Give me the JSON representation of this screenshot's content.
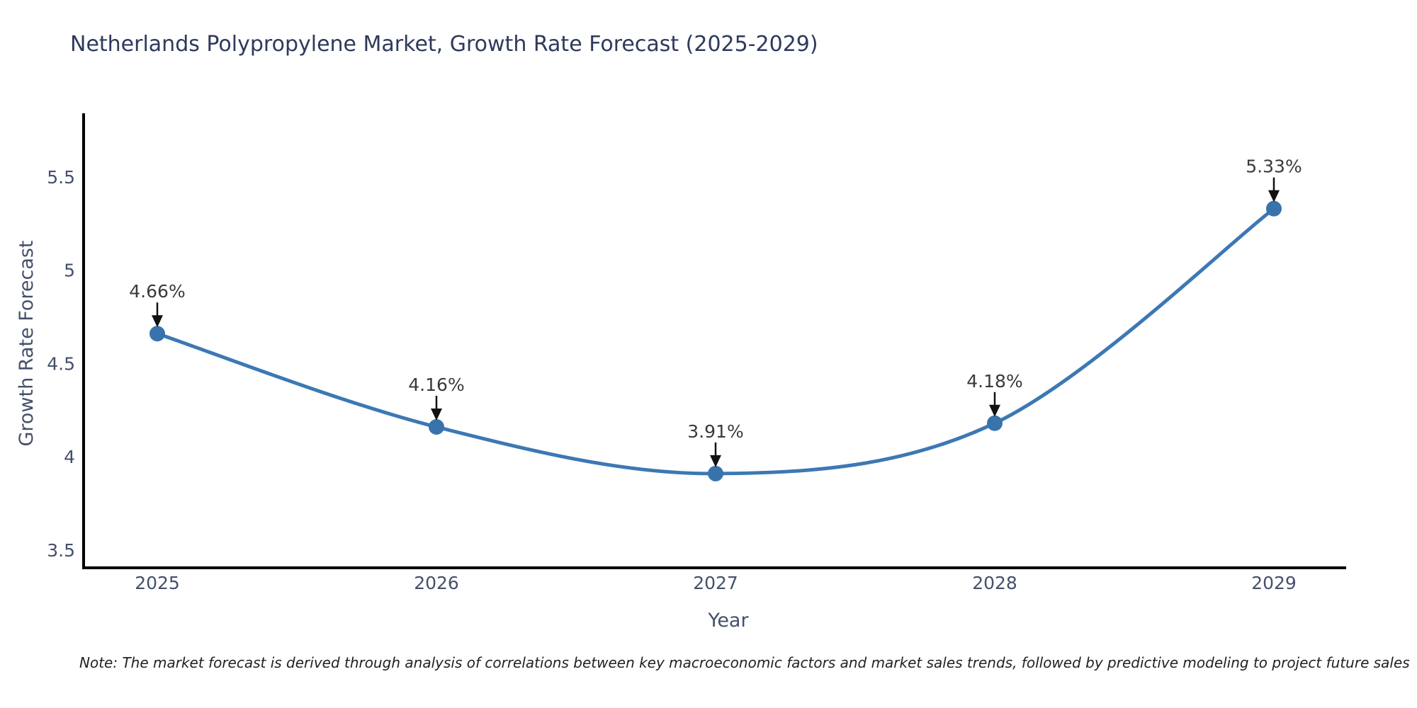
{
  "title": "Netherlands Polypropylene Market, Growth Rate Forecast (2025-2029)",
  "note": "Note: The market forecast is derived through analysis of correlations between key macroeconomic factors and market sales trends, followed by predictive modeling to project future sales",
  "colors": {
    "title_text": "#2e3a5c",
    "tick_label": "#44506b",
    "axis_title": "#44506b",
    "axis_line": "#000000",
    "line": "#3c78b4",
    "marker": "#3873ac",
    "annotation_text": "#3a3a3a",
    "annotation_arrow": "#111111",
    "note_text": "#222222",
    "background": "#ffffff"
  },
  "chart_data": {
    "type": "line",
    "title": "Netherlands Polypropylene Market, Growth Rate Forecast (2025-2029)",
    "xlabel": "Year",
    "ylabel": "Growth Rate Forecast",
    "x": [
      2025,
      2026,
      2027,
      2028,
      2029
    ],
    "xtick_labels": [
      "2025",
      "2026",
      "2027",
      "2028",
      "2029"
    ],
    "series": [
      {
        "name": "Growth Rate Forecast",
        "values": [
          4.66,
          4.16,
          3.91,
          4.18,
          5.33
        ]
      }
    ],
    "point_labels": [
      "4.66%",
      "4.16%",
      "3.91%",
      "4.18%",
      "5.33%"
    ],
    "yticks": [
      3.5,
      4,
      4.5,
      5,
      5.5
    ],
    "ytick_labels": [
      "3.5",
      "4",
      "4.5",
      "5",
      "5.5"
    ],
    "ylim": [
      3.405,
      5.841
    ],
    "grid": false,
    "legend": "none",
    "marker": "circle",
    "smooth": true,
    "annotations": "down-arrow-to-point"
  }
}
